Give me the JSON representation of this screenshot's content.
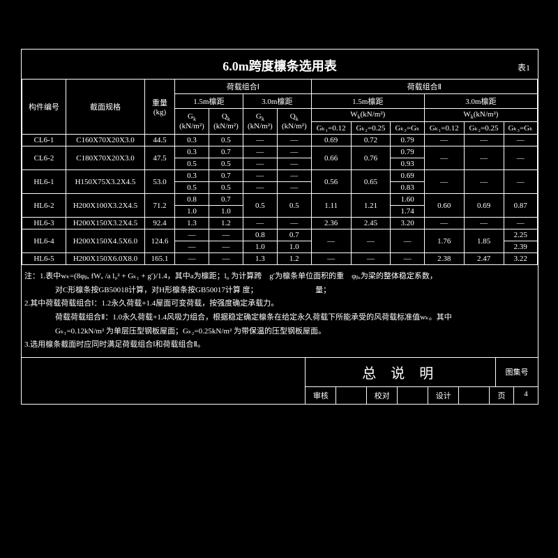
{
  "title": "6.0m跨度檩条选用表",
  "table_label": "表1",
  "dash": "—",
  "colors": {
    "background": "#000000",
    "foreground": "#ffffff",
    "border": "#ffffff"
  },
  "header": {
    "col_member": "构件编号",
    "col_section": "截面规格",
    "col_weight": "重量\n(kg)",
    "combo1": "荷载组合Ⅰ",
    "combo2": "荷载组合Ⅱ",
    "span15": "1.5m檩距",
    "span30": "3.0m檩距",
    "gk": "Gₖ",
    "qk": "Qₖ",
    "gk_unit": "(kN/m²)",
    "qk_unit": "(kN/m²)",
    "wk": "Wₖ(kN/m²)",
    "gk012": "Gₖ₁=0.12",
    "gk025": "Gₖ₂=0.25",
    "gk_gk": "Gₖ₃=Gₖ"
  },
  "rows": [
    {
      "id": "CL6-1",
      "spec": "C160X70X20X3.0",
      "wt": "44.5",
      "c1": [
        [
          "0.3",
          "0.5",
          "—",
          "—"
        ]
      ],
      "c2": [
        [
          "0.69",
          "0.72",
          "0.79",
          "—",
          "—",
          "—"
        ]
      ]
    },
    {
      "id": "CL6-2",
      "spec": "C180X70X20X3.0",
      "wt": "47.5",
      "c1": [
        [
          "0.3",
          "0.7",
          "—",
          "—"
        ],
        [
          "0.5",
          "0.5",
          "—",
          "—"
        ]
      ],
      "c2": [
        [
          "0.66",
          "0.76",
          "0.79",
          "—",
          "—",
          "—"
        ],
        [
          "",
          "",
          "0.93",
          "",
          "",
          ""
        ]
      ]
    },
    {
      "id": "HL6-1",
      "spec": "H150X75X3.2X4.5",
      "wt": "53.0",
      "c1": [
        [
          "0.3",
          "0.7",
          "—",
          "—"
        ],
        [
          "0.5",
          "0.5",
          "—",
          "—"
        ]
      ],
      "c2": [
        [
          "0.56",
          "0.65",
          "0.69",
          "—",
          "—",
          "—"
        ],
        [
          "",
          "",
          "0.83",
          "",
          "",
          ""
        ]
      ]
    },
    {
      "id": "HL6-2",
      "spec": "H200X100X3.2X4.5",
      "wt": "71.2",
      "c1": [
        [
          "0.8",
          "0.7",
          "0.5",
          "0.5"
        ],
        [
          "1.0",
          "1.0",
          "",
          ""
        ]
      ],
      "c2": [
        [
          "1.11",
          "1.21",
          "1.60",
          "0.60",
          "0.69",
          "0.87"
        ],
        [
          "",
          "",
          "1.74",
          "",
          "",
          ""
        ]
      ]
    },
    {
      "id": "HL6-3",
      "spec": "H200X150X3.2X4.5",
      "wt": "92.4",
      "c1": [
        [
          "1.3",
          "1.2",
          "—",
          "—"
        ]
      ],
      "c2": [
        [
          "2.36",
          "2.45",
          "3.20",
          "—",
          "—",
          "—"
        ]
      ]
    },
    {
      "id": "HL6-4",
      "spec": "H200X150X4.5X6.0",
      "wt": "124.6",
      "c1": [
        [
          "—",
          "—",
          "0.8",
          "0.7"
        ],
        [
          "—",
          "—",
          "1.0",
          "1.0"
        ]
      ],
      "c2": [
        [
          "—",
          "—",
          "—",
          "1.76",
          "1.85",
          "2.25"
        ],
        [
          "",
          "",
          "",
          "",
          "",
          "2.39"
        ]
      ]
    },
    {
      "id": "HL6-5",
      "spec": "H200X150X6.0X8.0",
      "wt": "165.1",
      "c1": [
        [
          "—",
          "—",
          "1.3",
          "1.2"
        ]
      ],
      "c2": [
        [
          "—",
          "—",
          "—",
          "2.38",
          "2.47",
          "3.22"
        ]
      ]
    }
  ],
  "notes": {
    "n1a": "注：1.表中wₖ=(8φᵦₓ fWₓ /a l₀² + Gₖ₁ + g′)/1.4，其中a为檩距；l₀ 为计算跨　g′为檩条单位面积的重　φᵦₓ为梁的整体稳定系数，",
    "n1b": "对C形檩条按GB50018计算，对H形檩条按GB50017计算 度；　　　　　　　　量；",
    "n2a": "2.其中荷载荷载组合Ⅰ：1.2永久荷载+1.4屋面可变荷载，按强度确定承载力。",
    "n2b": "荷载荷载组合Ⅱ：1.0永久荷载+1.4风吸力组合，根据稳定确定檩条在给定永久荷载下所能承受的风荷载标准值wₖ。其中",
    "n2c": "Gₖ₁=0.12kN/m² 为单层压型钢板屋面；Gₖ₂=0.25kN/m² 为带保温的压型钢板屋面。",
    "n3": "3.选用檩条截面时应同时满足荷载组合Ⅰ和荷载组合Ⅱ。"
  },
  "footer": {
    "title": "总 说 明",
    "drawno": "图集号",
    "shenhe": "审核",
    "xiaodui": "校对",
    "sheji": "设计",
    "page": "页",
    "page_no": "4"
  }
}
